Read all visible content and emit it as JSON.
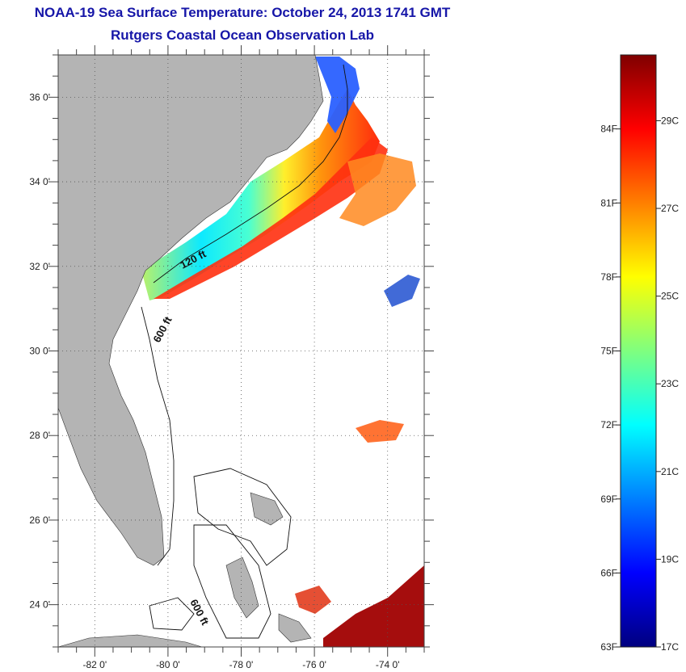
{
  "header": {
    "title_line1": "NOAA-19 Sea Surface Temperature:  October 24, 2013 1741 GMT",
    "title_line2": "Rutgers Coastal Ocean Observation Lab"
  },
  "map": {
    "lon_range": [
      -83,
      -73
    ],
    "lat_range": [
      23,
      37
    ],
    "lat_ticks": [
      {
        "value": 24,
        "label": "24 0'"
      },
      {
        "value": 26,
        "label": "26 0'"
      },
      {
        "value": 28,
        "label": "28 0'"
      },
      {
        "value": 30,
        "label": "30 0'"
      },
      {
        "value": 32,
        "label": "32 0'"
      },
      {
        "value": 34,
        "label": "34 0'"
      },
      {
        "value": 36,
        "label": "36 0'"
      }
    ],
    "lon_ticks": [
      {
        "value": -82,
        "label": "-82 0'"
      },
      {
        "value": -80,
        "label": "-80 0'"
      },
      {
        "value": -78,
        "label": "-78 0'"
      },
      {
        "value": -76,
        "label": "-76 0'"
      },
      {
        "value": -74,
        "label": "-74 0'"
      }
    ],
    "isobath_labels": [
      "120 ft",
      "600 ft",
      "600 ft"
    ],
    "colors": {
      "land": "#b4b4b4",
      "ocean": "#ffffff",
      "grid": "#555555"
    }
  },
  "colorbar": {
    "fahrenheit_labels": [
      {
        "value": 63,
        "label": "63F"
      },
      {
        "value": 66,
        "label": "66F"
      },
      {
        "value": 69,
        "label": "69F"
      },
      {
        "value": 72,
        "label": "72F"
      },
      {
        "value": 75,
        "label": "75F"
      },
      {
        "value": 78,
        "label": "78F"
      },
      {
        "value": 81,
        "label": "81F"
      },
      {
        "value": 84,
        "label": "84F"
      }
    ],
    "celsius_labels": [
      {
        "value": 17,
        "label": "17C"
      },
      {
        "value": 19,
        "label": "19C"
      },
      {
        "value": 21,
        "label": "21C"
      },
      {
        "value": 23,
        "label": "23C"
      },
      {
        "value": 25,
        "label": "25C"
      },
      {
        "value": 27,
        "label": "27C"
      },
      {
        "value": 29,
        "label": "29C"
      }
    ],
    "range_f": [
      63,
      87
    ],
    "range_c": [
      17,
      30.5
    ],
    "colors": [
      "#00007f",
      "#0000ff",
      "#007fff",
      "#00ffff",
      "#7fff7f",
      "#ffff00",
      "#ff7f00",
      "#ff0000",
      "#7f0000"
    ]
  }
}
